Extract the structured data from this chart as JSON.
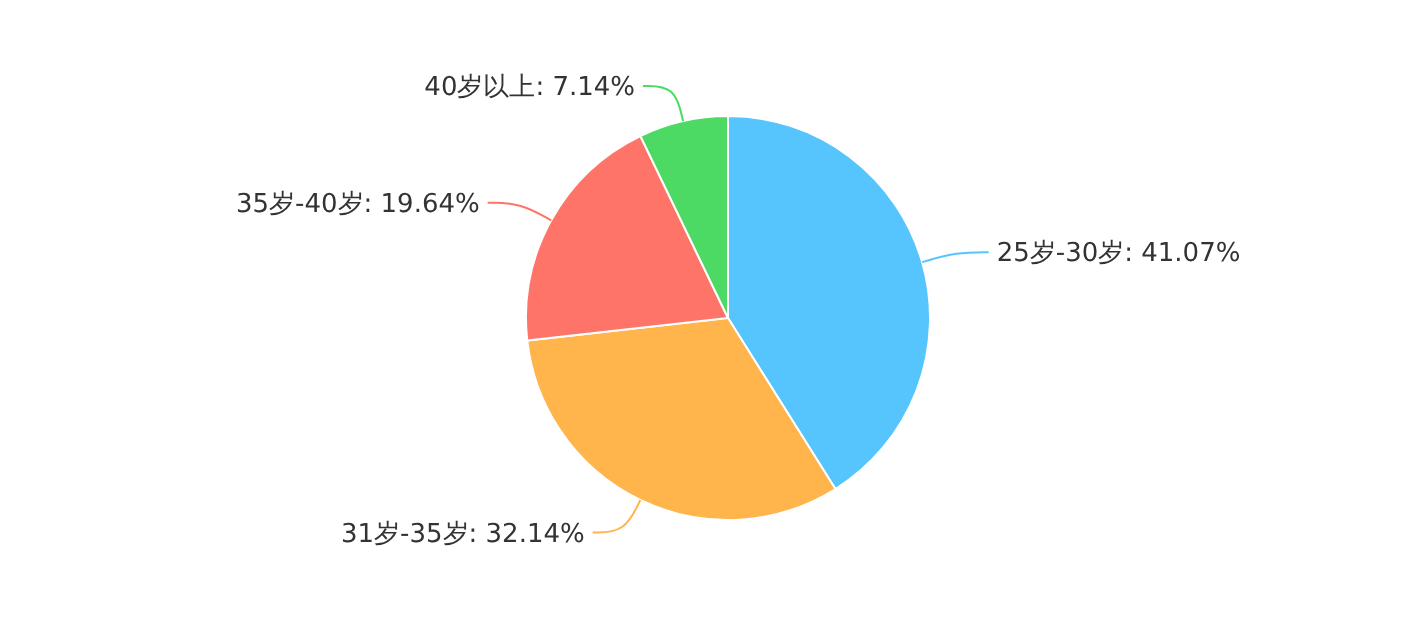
{
  "chart_data": {
    "type": "pie",
    "categories": [
      "25岁-30岁",
      "31岁-35岁",
      "35岁-40岁",
      "40岁以上"
    ],
    "values": [
      41.07,
      32.14,
      19.64,
      7.14
    ],
    "value_labels": [
      "41.07%",
      "32.14%",
      "19.64%",
      "7.14%"
    ],
    "colors": [
      "#56c5fd",
      "#ffb54c",
      "#ff7469",
      "#4cd964"
    ],
    "legend": false
  }
}
